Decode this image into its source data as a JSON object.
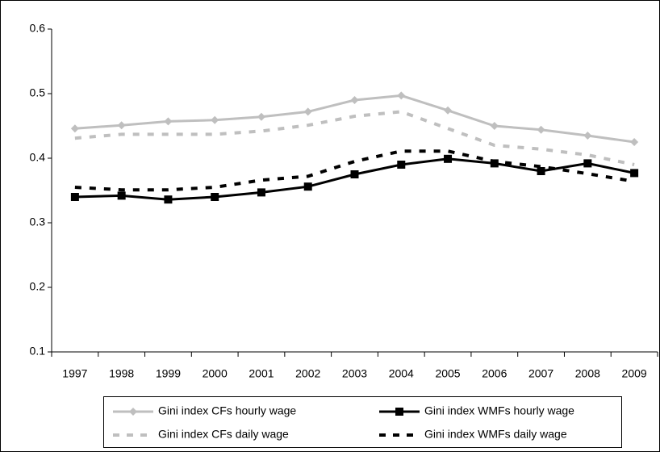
{
  "chart_data": {
    "type": "line",
    "categories": [
      "1997",
      "1998",
      "1999",
      "2000",
      "2001",
      "2002",
      "2003",
      "2004",
      "2005",
      "2006",
      "2007",
      "2008",
      "2009"
    ],
    "ylim": [
      0.1,
      0.6
    ],
    "yticks": [
      0.1,
      0.2,
      0.3,
      0.4,
      0.5,
      0.6
    ],
    "grid": false,
    "legend": "bottom",
    "series": [
      {
        "name": "Gini index CFs hourly wage",
        "color": "#bfbfbf",
        "dash": false,
        "marker": "diamond",
        "values": [
          0.446,
          0.451,
          0.457,
          0.459,
          0.464,
          0.472,
          0.49,
          0.497,
          0.474,
          0.45,
          0.444,
          0.435,
          0.425
        ]
      },
      {
        "name": "Gini index WMFs hourly wage",
        "color": "#000000",
        "dash": false,
        "marker": "square",
        "values": [
          0.34,
          0.342,
          0.336,
          0.34,
          0.347,
          0.356,
          0.375,
          0.39,
          0.399,
          0.392,
          0.38,
          0.392,
          0.377
        ]
      },
      {
        "name": "Gini index CFs daily wage",
        "color": "#bfbfbf",
        "dash": true,
        "marker": "none",
        "values": [
          0.431,
          0.437,
          0.437,
          0.437,
          0.442,
          0.451,
          0.465,
          0.472,
          0.446,
          0.42,
          0.414,
          0.405,
          0.39
        ]
      },
      {
        "name": "Gini index WMFs daily wage",
        "color": "#000000",
        "dash": true,
        "marker": "none",
        "values": [
          0.355,
          0.351,
          0.351,
          0.355,
          0.366,
          0.372,
          0.395,
          0.411,
          0.411,
          0.395,
          0.387,
          0.376,
          0.364
        ]
      }
    ]
  }
}
